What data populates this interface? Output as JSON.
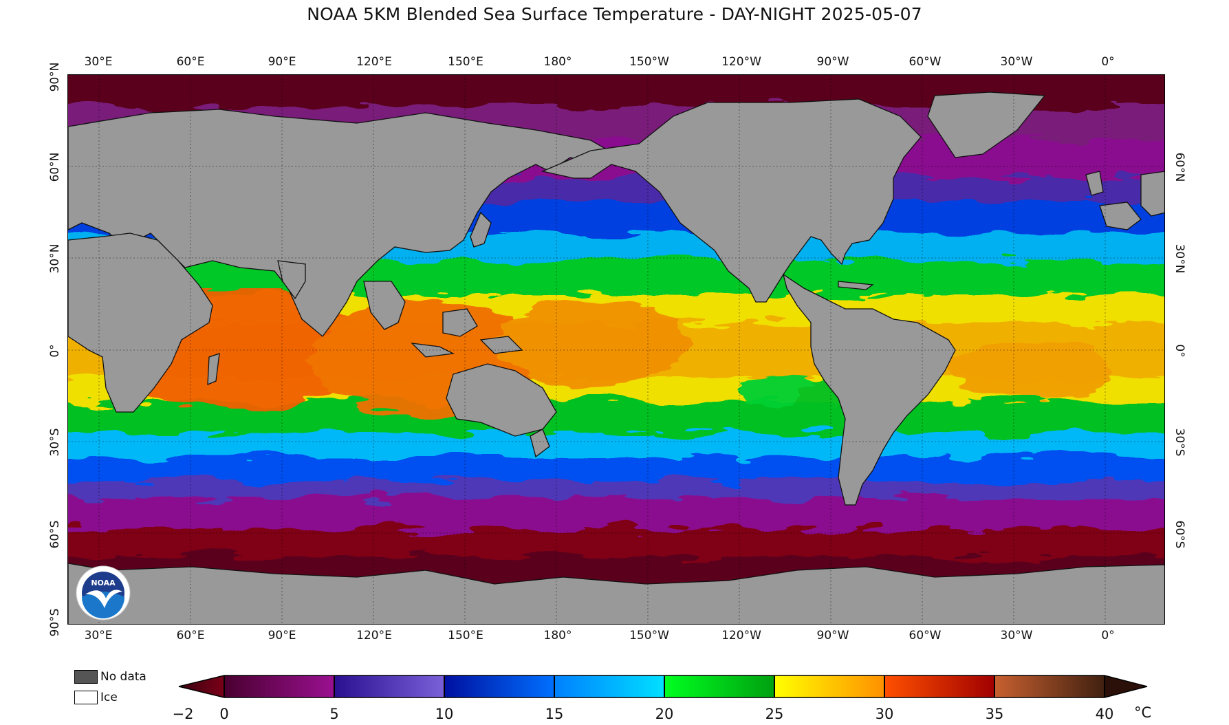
{
  "title": "NOAA 5KM Blended Sea Surface Temperature - DAY-NIGHT 2025-05-07",
  "longitude_labels": [
    "30°E",
    "60°E",
    "90°E",
    "120°E",
    "150°E",
    "180°",
    "150°W",
    "120°W",
    "90°W",
    "60°W",
    "30°W",
    "0°"
  ],
  "latitude_labels_left": [
    "90°N",
    "60°N",
    "30°N",
    "0°",
    "30°S",
    "60°S",
    "90°S"
  ],
  "latitude_labels_right": [
    "60°N",
    "30°N",
    "0°",
    "30°S",
    "60°S"
  ],
  "legend": {
    "no_data_label": "No data",
    "ice_label": "Ice",
    "no_data_color": "#555555",
    "ice_color": "#ffffff",
    "land_color": "#999999"
  },
  "colorbar": {
    "unit": "°C",
    "tick_labels": [
      "−2",
      "0",
      "5",
      "10",
      "15",
      "20",
      "25",
      "30",
      "35",
      "40"
    ],
    "segments": [
      {
        "from": -2,
        "to": 0,
        "colors": [
          "#3a0010",
          "#7a0018"
        ]
      },
      {
        "from": 0,
        "to": 5,
        "colors": [
          "#4a0030",
          "#9a1090"
        ]
      },
      {
        "from": 5,
        "to": 10,
        "colors": [
          "#2a1090",
          "#7a60d8"
        ]
      },
      {
        "from": 10,
        "to": 15,
        "colors": [
          "#0010a0",
          "#0070ff"
        ]
      },
      {
        "from": 15,
        "to": 20,
        "colors": [
          "#0080ff",
          "#00e0ff"
        ]
      },
      {
        "from": 20,
        "to": 25,
        "colors": [
          "#00ff20",
          "#00a010"
        ]
      },
      {
        "from": 25,
        "to": 30,
        "colors": [
          "#ffff00",
          "#ff9000"
        ]
      },
      {
        "from": 30,
        "to": 35,
        "colors": [
          "#ff5000",
          "#a00000"
        ]
      },
      {
        "from": 35,
        "to": 40,
        "colors": [
          "#c86030",
          "#402010"
        ]
      }
    ]
  },
  "logo": {
    "text": "NOAA"
  }
}
